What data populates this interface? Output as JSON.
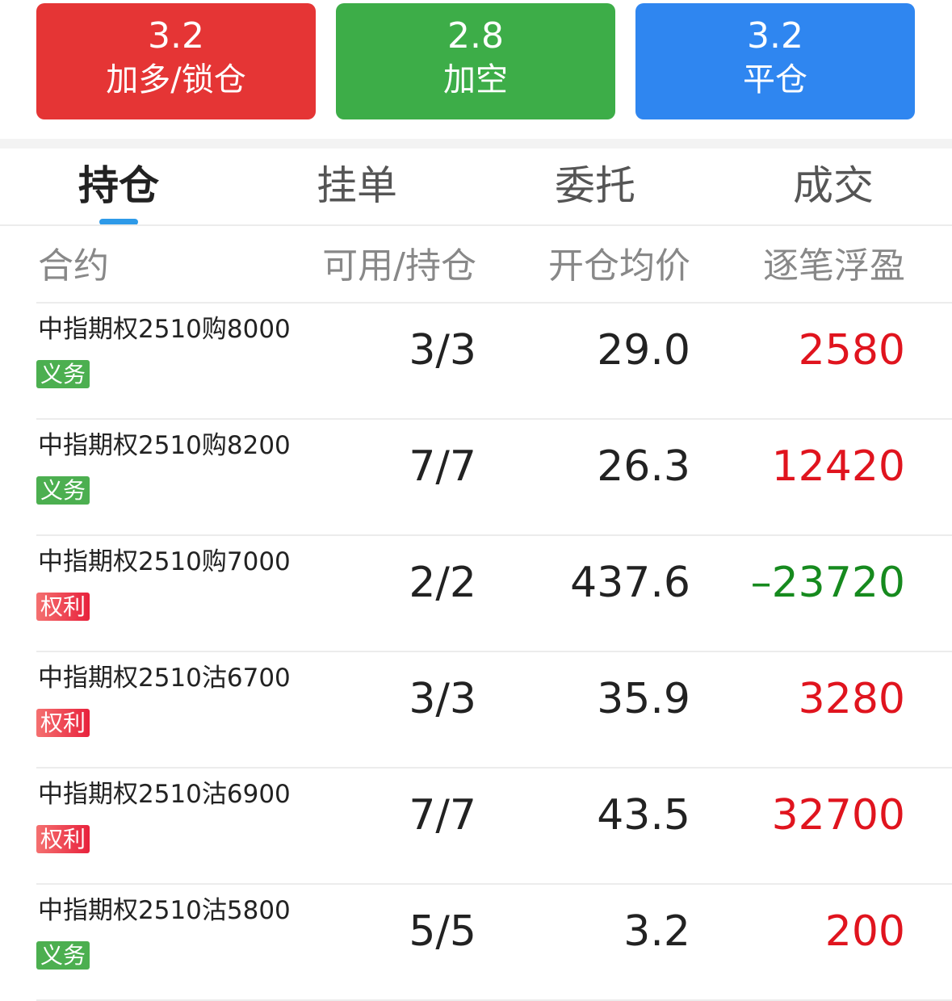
{
  "actions": [
    {
      "value": "3.2",
      "label": "加多/锁仓",
      "color": "#e53535"
    },
    {
      "value": "2.8",
      "label": "加空",
      "color": "#3dad48"
    },
    {
      "value": "3.2",
      "label": "平仓",
      "color": "#2f86f0"
    }
  ],
  "tabs": [
    {
      "label": "持仓",
      "active": true
    },
    {
      "label": "挂单"
    },
    {
      "label": "委托"
    },
    {
      "label": "成交"
    }
  ],
  "headers": [
    "合约",
    "可用/持仓",
    "开仓均价",
    "逐笔浮盈"
  ],
  "rows": [
    {
      "name": "中指期权2510购8000",
      "badge": "义务",
      "qty": "3/3",
      "price": "29.0",
      "pnl": "2580"
    },
    {
      "name": "中指期权2510购8200",
      "badge": "义务",
      "qty": "7/7",
      "price": "26.3",
      "pnl": "12420"
    },
    {
      "name": "中指期权2510购7000",
      "badge": "权利",
      "qty": "2/2",
      "price": "437.6",
      "pnl": "–23720"
    },
    {
      "name": "中指期权2510沽6700",
      "badge": "权利",
      "qty": "3/3",
      "price": "35.9",
      "pnl": "3280"
    },
    {
      "name": "中指期权2510沽6900",
      "badge": "权利",
      "qty": "7/7",
      "price": "43.5",
      "pnl": "32700"
    },
    {
      "name": "中指期权2510沽5800",
      "badge": "义务",
      "qty": "5/5",
      "price": "3.2",
      "pnl": "200"
    }
  ],
  "colors": {
    "profit": "#e0141e",
    "loss": "#168a1e"
  }
}
